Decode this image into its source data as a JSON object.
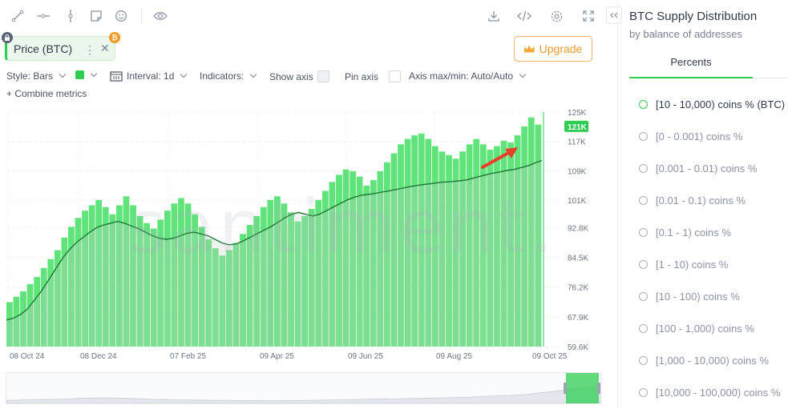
{
  "toolbar": {
    "left_icons": [
      "line-tool-icon",
      "horizontal-ray-icon",
      "vertical-line-icon",
      "sticky-note-icon",
      "emoji-icon",
      "eye-icon"
    ],
    "right_icons": [
      "download-icon",
      "embed-code-icon",
      "settings-icon",
      "fullscreen-icon"
    ]
  },
  "metric": {
    "label": "Price (BTC)",
    "badge": "₿"
  },
  "upgrade_label": "Upgrade",
  "settings": {
    "style": "Style: Bars",
    "interval": "Interval: 1d",
    "indicators": "Indicators:",
    "show_axis": "Show axis",
    "pin_axis": "Pin axis",
    "axis_minmax": "Axis max/min: Auto/Auto"
  },
  "combine_label": "+ Combine metrics",
  "watermark": "santiment.",
  "panel": {
    "title": "BTC Supply Distribution",
    "subtitle": "by balance of addresses",
    "tab": "Percents",
    "options": [
      "[10 - 10,000) coins % (BTC)",
      "[0 - 0.001) coins %",
      "[0.001 - 0.01) coins %",
      "[0.01 - 0.1) coins %",
      "[0.1 - 1) coins %",
      "[1 - 10) coins %",
      "[10 - 100) coins %",
      "[100 - 1,000) coins %",
      "[1,000 - 10,000) coins %",
      "[10,000 - 100,000) coins %"
    ]
  },
  "colors": {
    "accent": "#2ecc52",
    "bar": "#5fe37a",
    "price_line": "#1f7a36",
    "arrow": "#e8402a"
  },
  "chart_data": {
    "type": "bar",
    "x_ticks": [
      "08 Oct 24",
      "08 Dec 24",
      "07 Feb 25",
      "09 Apr 25",
      "09 Jun 25",
      "09 Aug 25",
      "09 Oct 25"
    ],
    "y_ticks": [
      "125K",
      "117K",
      "109K",
      "101K",
      "92.8K",
      "84.5K",
      "76.2K",
      "67.9K",
      "59.6K"
    ],
    "ylim": [
      59600,
      125000
    ],
    "current_value_label": "121K",
    "grid": true,
    "series": [
      {
        "chart": "bar",
        "values": [
          72000,
          73500,
          75000,
          77000,
          79000,
          81500,
          84000,
          86500,
          90000,
          93000,
          95500,
          97500,
          99000,
          100500,
          98500,
          96500,
          99000,
          101500,
          99000,
          96000,
          94000,
          92500,
          95000,
          97500,
          99500,
          101000,
          99500,
          96500,
          93000,
          89500,
          87000,
          85000,
          86500,
          88500,
          91000,
          93500,
          96000,
          98500,
          100500,
          101500,
          99500,
          97000,
          94500,
          96000,
          98000,
          100500,
          103000,
          105500,
          107500,
          109000,
          108500,
          107000,
          104500,
          106000,
          108500,
          111000,
          113500,
          116000,
          117500,
          118500,
          119000,
          117500,
          115500,
          114000,
          113000,
          112000,
          114000,
          116000,
          117500,
          116000,
          114500,
          115500,
          117000,
          116500,
          118500,
          121000,
          123500,
          121500
        ]
      },
      {
        "chart": "line",
        "values": [
          67000,
          67500,
          68500,
          70000,
          72500,
          75000,
          78000,
          81000,
          84000,
          86500,
          88500,
          90000,
          91500,
          92800,
          93500,
          94000,
          94500,
          94000,
          93200,
          92500,
          91500,
          90500,
          89800,
          89500,
          89800,
          90500,
          91200,
          91500,
          91000,
          90500,
          89500,
          88500,
          88000,
          88200,
          89000,
          90000,
          91000,
          92000,
          93000,
          94200,
          95500,
          96500,
          97000,
          96500,
          96000,
          96500,
          97500,
          98500,
          99500,
          100500,
          101200,
          101800,
          102000,
          102300,
          102700,
          103000,
          103400,
          103800,
          104200,
          104500,
          104800,
          105000,
          105300,
          105500,
          105600,
          105800,
          106000,
          106500,
          107000,
          107500,
          108000,
          108300,
          108700,
          109000,
          109500,
          110000,
          110800,
          111500
        ]
      }
    ],
    "navigator_values": [
      62000,
      62500,
      63500,
      64000,
      64500,
      65500,
      67000,
      68000,
      68500,
      68000,
      67000,
      66000,
      64500,
      64000,
      63000,
      63000,
      62500,
      62000,
      62000,
      61500,
      61500,
      61000,
      61000,
      61000,
      61500,
      62000,
      62500,
      63000,
      63500,
      64000,
      65000,
      66000,
      65500,
      66500,
      67000,
      68000,
      68500,
      69500,
      70000,
      72000,
      73000,
      74000,
      75500,
      78000,
      82000,
      85000,
      89000,
      92000,
      95000,
      98500
    ]
  }
}
